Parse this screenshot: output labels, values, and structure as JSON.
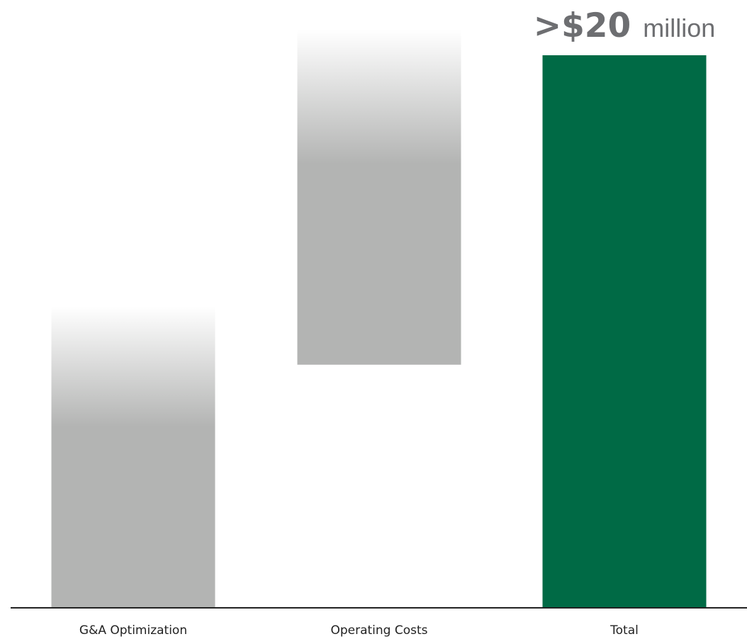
{
  "chart_data": {
    "type": "bar",
    "subtype": "waterfall",
    "categories": [
      "G&A Optimization",
      "Operating Costs",
      "Total"
    ],
    "bars": [
      {
        "category": "G&A Optimization",
        "start": 0,
        "end": 8.8,
        "style": "faded-gray"
      },
      {
        "category": "Operating Costs",
        "start": 8.8,
        "end": 18.8,
        "style": "faded-gray"
      },
      {
        "category": "Total",
        "start": 0,
        "end": 20,
        "style": "solid-green"
      }
    ],
    "total_label": {
      "value_text": ">$20",
      "unit_text": "million"
    },
    "ylim": [
      0,
      20
    ],
    "grid": false,
    "legend": "none",
    "colors": {
      "gray": "#b3b4b3",
      "green": "#006a45",
      "baseline": "#222222",
      "label": "#6d6e71"
    }
  }
}
